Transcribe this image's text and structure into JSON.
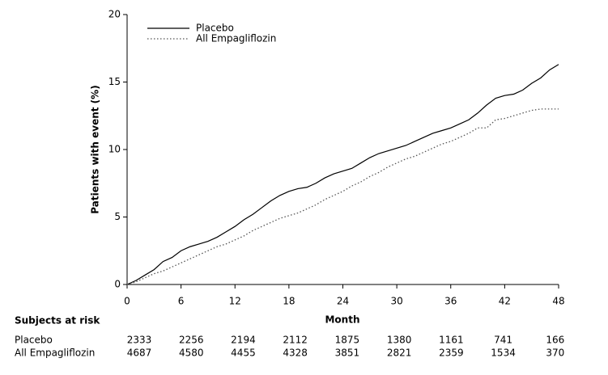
{
  "chart_data": {
    "type": "line",
    "ylabel": "Patients with event (%)",
    "xlabel": "Month",
    "xlim": [
      0,
      48
    ],
    "xticks": [
      0,
      6,
      12,
      18,
      24,
      30,
      36,
      42,
      48
    ],
    "ylim": [
      0,
      20
    ],
    "yticks": [
      0,
      5,
      10,
      15,
      20
    ],
    "legend": "top-left",
    "x": [
      0,
      1,
      2,
      3,
      4,
      5,
      6,
      7,
      8,
      9,
      10,
      11,
      12,
      13,
      14,
      15,
      16,
      17,
      18,
      19,
      20,
      21,
      22,
      23,
      24,
      25,
      26,
      27,
      28,
      29,
      30,
      31,
      32,
      33,
      34,
      35,
      36,
      37,
      38,
      39,
      40,
      41,
      42,
      43,
      44,
      45,
      46,
      47,
      48
    ],
    "series": [
      {
        "name": "Placebo",
        "color": "#000000",
        "dash": "solid",
        "values": [
          0,
          0.3,
          0.7,
          1.1,
          1.7,
          2.0,
          2.5,
          2.8,
          3.0,
          3.2,
          3.5,
          3.9,
          4.3,
          4.8,
          5.2,
          5.7,
          6.2,
          6.6,
          6.9,
          7.1,
          7.2,
          7.5,
          7.9,
          8.2,
          8.4,
          8.6,
          9.0,
          9.4,
          9.7,
          9.9,
          10.1,
          10.3,
          10.6,
          10.9,
          11.2,
          11.4,
          11.6,
          11.9,
          12.2,
          12.7,
          13.3,
          13.8,
          14.0,
          14.1,
          14.4,
          14.9,
          15.3,
          15.9,
          16.3
        ]
      },
      {
        "name": "All Empagliflozin",
        "color": "#555555",
        "dash": "dotted",
        "values": [
          0,
          0.2,
          0.5,
          0.8,
          1.0,
          1.3,
          1.6,
          1.9,
          2.2,
          2.5,
          2.8,
          3.0,
          3.3,
          3.6,
          4.0,
          4.3,
          4.6,
          4.9,
          5.1,
          5.3,
          5.6,
          5.9,
          6.3,
          6.6,
          6.9,
          7.3,
          7.6,
          8.0,
          8.3,
          8.7,
          9.0,
          9.3,
          9.5,
          9.8,
          10.1,
          10.4,
          10.6,
          10.9,
          11.2,
          11.6,
          11.6,
          12.2,
          12.3,
          12.5,
          12.7,
          12.9,
          13.0,
          13.0,
          13.0
        ]
      }
    ],
    "risk_table": {
      "title": "Subjects at risk",
      "rows": [
        {
          "name": "Placebo",
          "values": [
            2333,
            2256,
            2194,
            2112,
            1875,
            1380,
            1161,
            741,
            166
          ]
        },
        {
          "name": "All Empagliflozin",
          "values": [
            4687,
            4580,
            4455,
            4328,
            3851,
            2821,
            2359,
            1534,
            370
          ]
        }
      ]
    }
  }
}
